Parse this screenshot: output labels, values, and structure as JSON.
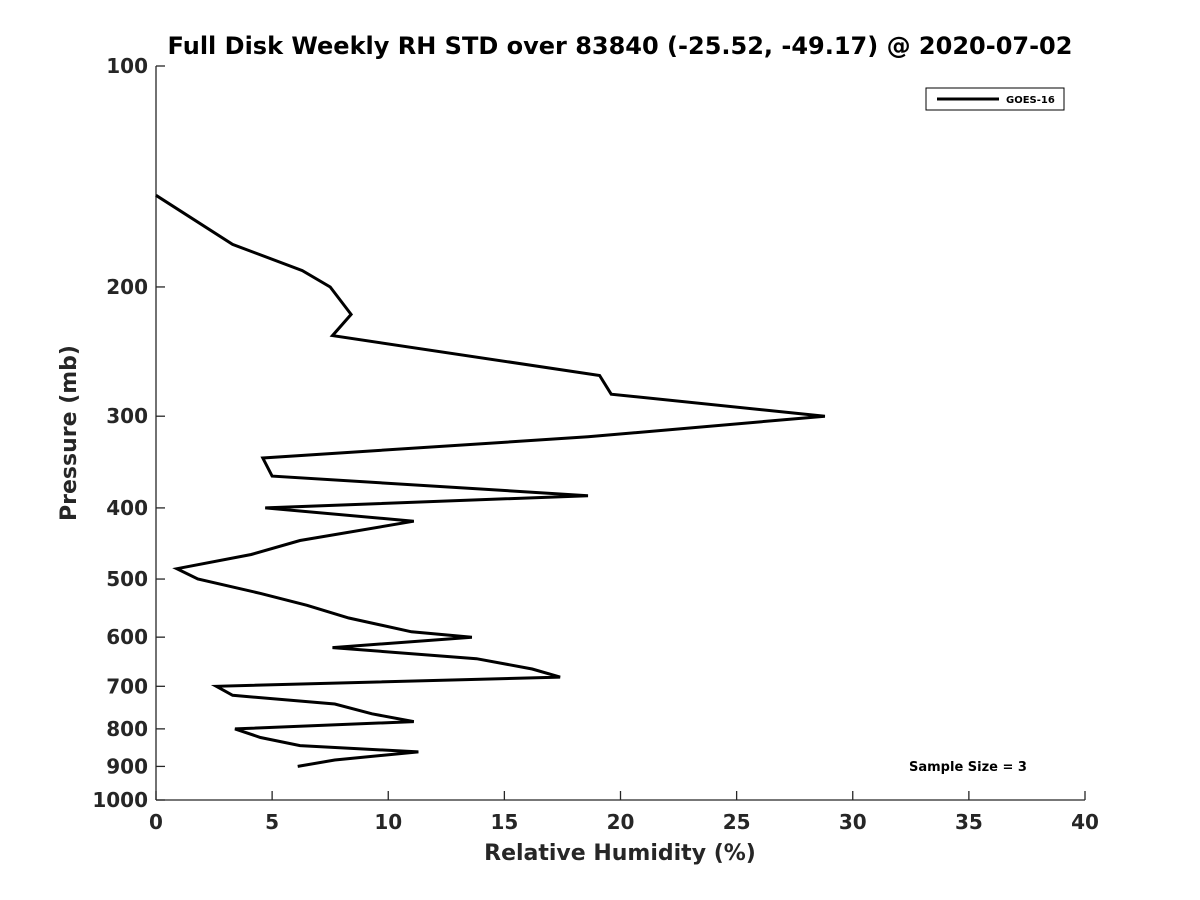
{
  "chart_data": {
    "type": "line",
    "title": "Full Disk Weekly RH STD over 83840 (-25.52, -49.17) @ 2020-07-02",
    "xlabel": "Relative Humidity (%)",
    "ylabel": "Pressure (mb)",
    "xlim": [
      0,
      40
    ],
    "ylim": [
      100,
      1000
    ],
    "yscale": "log",
    "yreversed": true,
    "grid": false,
    "xticks": [
      0,
      5,
      10,
      15,
      20,
      25,
      30,
      35,
      40
    ],
    "yticks": [
      100,
      200,
      300,
      400,
      500,
      600,
      700,
      800,
      900,
      1000
    ],
    "legend": {
      "position": "top-right",
      "entries": [
        "GOES-16"
      ]
    },
    "annotation": "Sample Size = 3",
    "series": [
      {
        "name": "GOES-16",
        "color": "#000000",
        "points": [
          [
            0.0,
            150
          ],
          [
            3.3,
            175
          ],
          [
            6.3,
            190
          ],
          [
            7.5,
            200
          ],
          [
            8.4,
            218
          ],
          [
            7.6,
            233
          ],
          [
            19.1,
            264
          ],
          [
            19.6,
            280
          ],
          [
            28.8,
            300
          ],
          [
            18.6,
            320
          ],
          [
            4.6,
            342
          ],
          [
            5.0,
            362
          ],
          [
            18.6,
            385
          ],
          [
            4.7,
            400
          ],
          [
            11.1,
            417
          ],
          [
            6.2,
            443
          ],
          [
            4.1,
            463
          ],
          [
            0.9,
            484
          ],
          [
            1.8,
            500
          ],
          [
            4.5,
            523
          ],
          [
            6.5,
            543
          ],
          [
            8.3,
            565
          ],
          [
            11.0,
            590
          ],
          [
            13.6,
            600
          ],
          [
            7.6,
            620
          ],
          [
            13.8,
            642
          ],
          [
            16.2,
            663
          ],
          [
            17.4,
            680
          ],
          [
            2.6,
            700
          ],
          [
            3.3,
            720
          ],
          [
            7.7,
            740
          ],
          [
            9.3,
            763
          ],
          [
            11.1,
            782
          ],
          [
            3.4,
            800
          ],
          [
            4.5,
            822
          ],
          [
            6.2,
            843
          ],
          [
            11.3,
            860
          ],
          [
            7.7,
            882
          ],
          [
            6.1,
            900
          ]
        ]
      }
    ]
  }
}
